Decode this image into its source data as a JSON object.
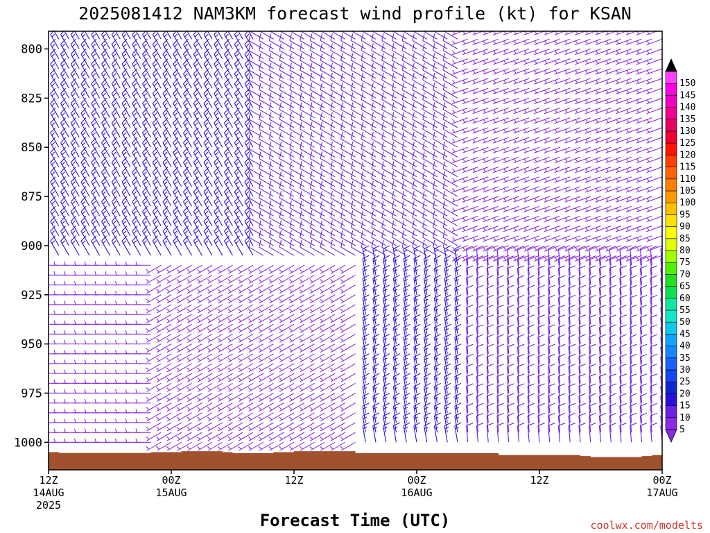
{
  "title": "2025081412 NAM3KM forecast wind profile (kt) for KSAN",
  "xlabel": "Forecast Time (UTC)",
  "credit": "coolwx.com/modelts",
  "chart_data": {
    "type": "wind-barb-profile",
    "title": "2025081412 NAM3KM forecast wind profile (kt) for KSAN",
    "xlabel": "Forecast Time (UTC)",
    "ylabel": "",
    "y_axis": {
      "units": "hPa",
      "inverted": true,
      "range": [
        791,
        1014
      ],
      "ticks": [
        800,
        825,
        850,
        875,
        900,
        925,
        950,
        975,
        1000
      ]
    },
    "x_axis": {
      "range_hours": [
        0,
        60
      ],
      "ticks": [
        {
          "hour": 0,
          "lines": [
            "12Z",
            "14AUG",
            "2025"
          ]
        },
        {
          "hour": 12,
          "lines": [
            "00Z",
            "15AUG"
          ]
        },
        {
          "hour": 24,
          "lines": [
            "12Z"
          ]
        },
        {
          "hour": 36,
          "lines": [
            "00Z",
            "16AUG"
          ]
        },
        {
          "hour": 48,
          "lines": [
            "12Z"
          ]
        },
        {
          "hour": 60,
          "lines": [
            "00Z",
            "17AUG"
          ]
        }
      ]
    },
    "surface_pressure": {
      "hours": [
        0,
        1,
        4,
        7,
        9,
        10,
        13,
        15,
        17,
        18,
        22,
        24,
        30,
        36,
        39,
        44,
        48,
        52,
        53,
        55,
        56,
        57,
        58,
        59,
        60
      ],
      "pressure": [
        1005,
        1005.4,
        1005.4,
        1005.4,
        1005.4,
        1005,
        1004.5,
        1004.5,
        1005,
        1005.5,
        1005,
        1004.5,
        1005.5,
        1005.5,
        1005.5,
        1006.5,
        1006.5,
        1007,
        1007.5,
        1007.5,
        1007.5,
        1007.5,
        1007,
        1006.5,
        1006
      ]
    },
    "wind_barb_grid": {
      "hour_step": 1,
      "pressure_levels": [
        790,
        795,
        800,
        805,
        810,
        815,
        820,
        825,
        830,
        835,
        840,
        845,
        850,
        855,
        860,
        865,
        870,
        875,
        880,
        885,
        890,
        895,
        900,
        905,
        910,
        915,
        920,
        925,
        930,
        935,
        940,
        945,
        950,
        955,
        960,
        965,
        970,
        975,
        980,
        985,
        990,
        995,
        1000
      ],
      "pattern": [
        {
          "hour_from": 0,
          "hour_to": 20,
          "p_top": 790,
          "p_bottom": 905,
          "direction_deg": 330,
          "speed_kt": 15
        },
        {
          "hour_from": 20,
          "hour_to": 40,
          "p_top": 790,
          "p_bottom": 905,
          "direction_deg": 300,
          "speed_kt": 10
        },
        {
          "hour_from": 40,
          "hour_to": 60,
          "p_top": 790,
          "p_bottom": 905,
          "direction_deg": 250,
          "speed_kt": 7
        },
        {
          "hour_from": 0,
          "hour_to": 10,
          "p_top": 905,
          "p_bottom": 1000,
          "direction_deg": 270,
          "speed_kt": 8
        },
        {
          "hour_from": 10,
          "hour_to": 30,
          "p_top": 905,
          "p_bottom": 1000,
          "direction_deg": 240,
          "speed_kt": 8
        },
        {
          "hour_from": 30,
          "hour_to": 40,
          "p_top": 905,
          "p_bottom": 1000,
          "direction_deg": 350,
          "speed_kt": 15
        },
        {
          "hour_from": 40,
          "hour_to": 60,
          "p_top": 905,
          "p_bottom": 1000,
          "direction_deg": 355,
          "speed_kt": 10
        }
      ]
    },
    "colorbar": {
      "units": "kt",
      "labels": [
        "5",
        "10",
        "15",
        "20",
        "25",
        "30",
        "35",
        "40",
        "45",
        "50",
        "55",
        "60",
        "65",
        "70",
        "75",
        "80",
        "85",
        "90",
        "95",
        "100",
        "105",
        "110",
        "115",
        "120",
        "125",
        "130",
        "135",
        "140",
        "145",
        "150"
      ],
      "colors": [
        "#8a2be2",
        "#6b21e0",
        "#2b10d8",
        "#1028cc",
        "#1448ee",
        "#1a62ff",
        "#1686ff",
        "#10a6ff",
        "#10c8e8",
        "#10e8c8",
        "#10e8a0",
        "#10e050",
        "#20e020",
        "#50f000",
        "#a0ff00",
        "#e0ff00",
        "#ffff00",
        "#ffe000",
        "#ffc000",
        "#ff9a00",
        "#ff8000",
        "#ff6400",
        "#ff4000",
        "#ff1400",
        "#f00030",
        "#e80060",
        "#f00090",
        "#f000c0",
        "#ff00e0",
        "#ff40ff"
      ],
      "over_color": "#000000",
      "under_color": "#8a2be2"
    }
  }
}
